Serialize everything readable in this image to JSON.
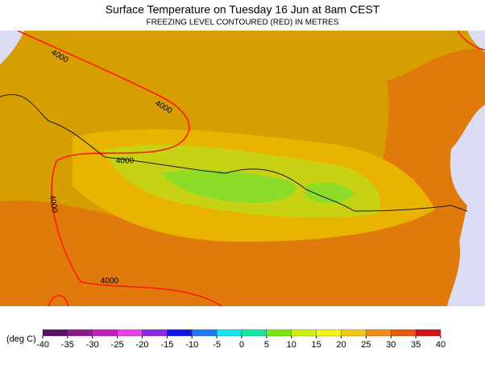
{
  "header": {
    "title": "Surface Temperature on Tuesday 16 Jun at 8am CEST",
    "subtitle": "FREEZING LEVEL CONTOURED (RED) IN METRES"
  },
  "contours": {
    "labels": [
      4000,
      4000,
      4000,
      4000,
      4000
    ]
  },
  "colorbar": {
    "unit": "(deg C)",
    "ticks": [
      -40,
      -35,
      -30,
      -25,
      -20,
      -15,
      -10,
      -5,
      0,
      5,
      10,
      15,
      20,
      25,
      30,
      35,
      40
    ],
    "colors": [
      "#5a0f64",
      "#8c1a8c",
      "#c020c0",
      "#e640e6",
      "#8c28e6",
      "#1414e6",
      "#1e78f0",
      "#14e6f0",
      "#14e6a0",
      "#78e614",
      "#d2f014",
      "#f5f514",
      "#f0c814",
      "#f08c14",
      "#e65a0a",
      "#d21414"
    ]
  }
}
